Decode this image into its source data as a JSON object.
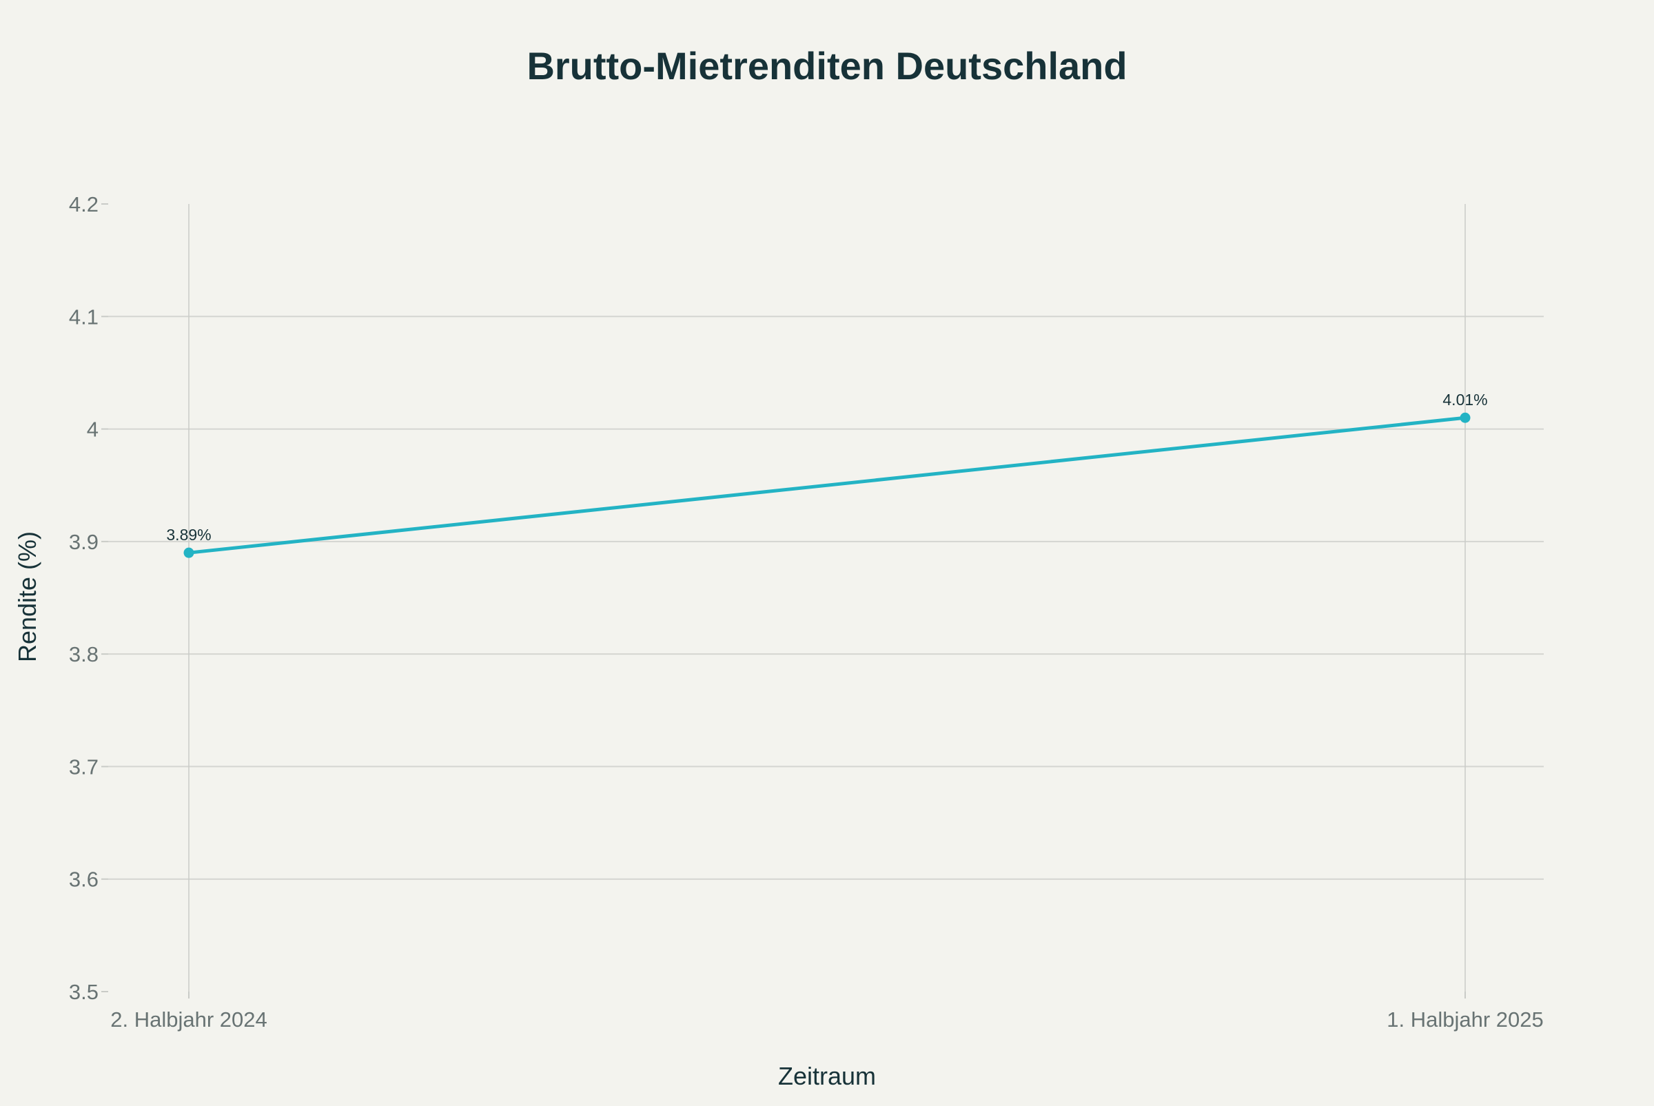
{
  "chart_data": {
    "type": "line",
    "title": "Brutto-Mietrenditen Deutschland",
    "xlabel": "Zeitraum",
    "ylabel": "Rendite (%)",
    "categories": [
      "2. Halbjahr 2024",
      "1. Halbjahr 2025"
    ],
    "series": [
      {
        "values": [
          3.89,
          4.01
        ],
        "data_labels": [
          "3.89%",
          "4.01%"
        ],
        "color": "#23b3c4"
      }
    ],
    "ylim": [
      3.5,
      4.2
    ],
    "yticks": [
      3.5,
      3.6,
      3.7,
      3.8,
      3.9,
      4,
      4.1,
      4.2
    ],
    "ytick_labels": [
      "3.5",
      "3.6",
      "3.7",
      "3.8",
      "3.9",
      "4",
      "4.1",
      "4.2"
    ],
    "grid": true,
    "legend": "none"
  }
}
